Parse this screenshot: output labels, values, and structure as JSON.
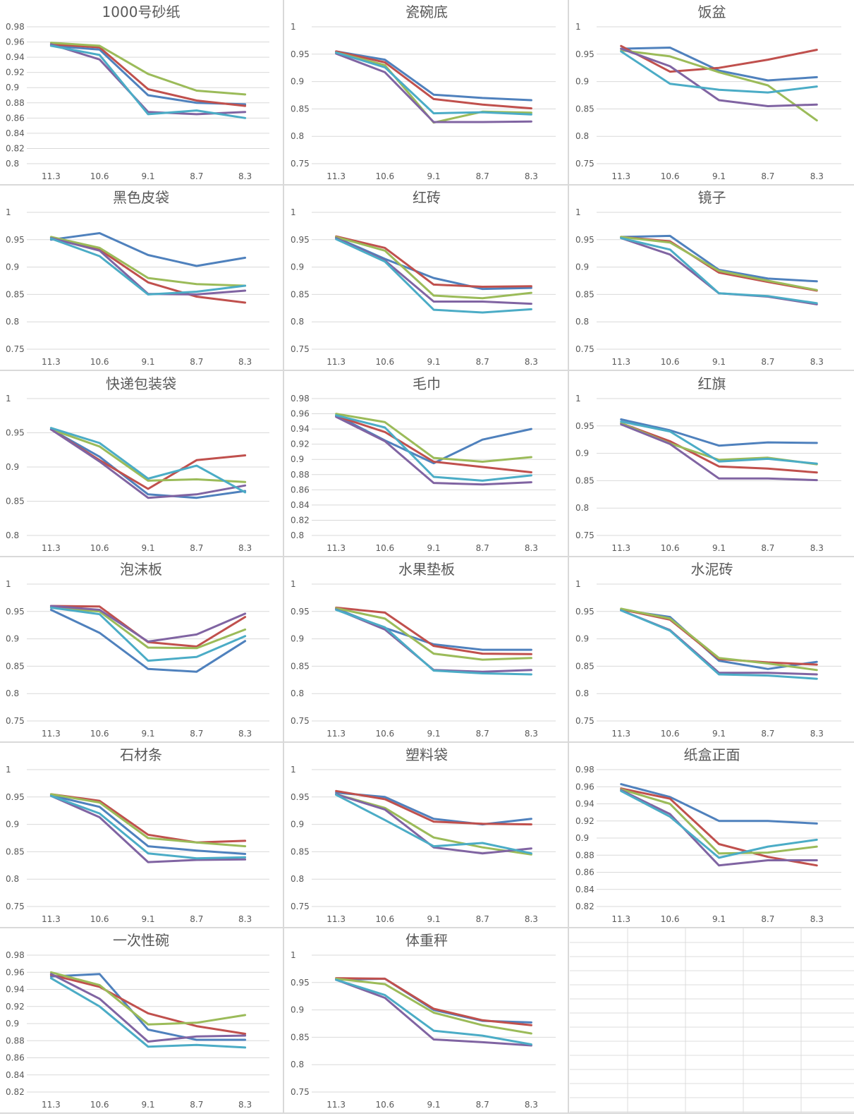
{
  "colors": [
    "#4f81bd",
    "#c0504d",
    "#9bbb59",
    "#8064a2",
    "#4bacc6"
  ],
  "chart_data": [
    {
      "type": "line",
      "title": "1000号砂纸",
      "categories": [
        "11.3",
        "10.6",
        "9.1",
        "8.7",
        "8.3"
      ],
      "yticks": [
        "0.8",
        "0.82",
        "0.84",
        "0.86",
        "0.88",
        "0.9",
        "0.92",
        "0.94",
        "0.96",
        "0.98"
      ],
      "ylim": [
        0.8,
        0.98
      ],
      "series": [
        {
          "values": [
            0.955,
            0.95,
            0.89,
            0.88,
            0.878
          ]
        },
        {
          "values": [
            0.957,
            0.953,
            0.898,
            0.883,
            0.876
          ]
        },
        {
          "values": [
            0.959,
            0.955,
            0.918,
            0.896,
            0.891
          ]
        },
        {
          "values": [
            0.957,
            0.937,
            0.868,
            0.865,
            0.868
          ]
        },
        {
          "values": [
            0.955,
            0.943,
            0.865,
            0.87,
            0.86
          ]
        }
      ]
    },
    {
      "type": "line",
      "title": "瓷碗底",
      "categories": [
        "11.3",
        "10.6",
        "9.1",
        "8.7",
        "8.3"
      ],
      "yticks": [
        "0.75",
        "0.8",
        "0.85",
        "0.9",
        "0.95",
        "1"
      ],
      "ylim": [
        0.75,
        1
      ],
      "series": [
        {
          "values": [
            0.955,
            0.94,
            0.876,
            0.87,
            0.866
          ]
        },
        {
          "values": [
            0.955,
            0.935,
            0.868,
            0.858,
            0.851
          ]
        },
        {
          "values": [
            0.953,
            0.93,
            0.825,
            0.845,
            0.843
          ]
        },
        {
          "values": [
            0.951,
            0.917,
            0.826,
            0.826,
            0.827
          ]
        },
        {
          "values": [
            0.953,
            0.926,
            0.842,
            0.844,
            0.84
          ]
        }
      ]
    },
    {
      "type": "line",
      "title": "饭盆",
      "categories": [
        "11.3",
        "10.6",
        "9.1",
        "8.7",
        "8.3"
      ],
      "yticks": [
        "0.75",
        "0.8",
        "0.85",
        "0.9",
        "0.95",
        "1"
      ],
      "ylim": [
        0.75,
        1
      ],
      "series": [
        {
          "values": [
            0.96,
            0.962,
            0.92,
            0.902,
            0.908
          ]
        },
        {
          "values": [
            0.965,
            0.918,
            0.925,
            0.94,
            0.958
          ]
        },
        {
          "values": [
            0.957,
            0.946,
            0.917,
            0.893,
            0.829
          ]
        },
        {
          "values": [
            0.96,
            0.928,
            0.866,
            0.855,
            0.858
          ]
        },
        {
          "values": [
            0.955,
            0.896,
            0.885,
            0.88,
            0.891
          ]
        }
      ]
    },
    {
      "type": "line",
      "title": "黑色皮袋",
      "categories": [
        "11.3",
        "10.6",
        "9.1",
        "8.7",
        "8.3"
      ],
      "yticks": [
        "0.75",
        "0.8",
        "0.85",
        "0.9",
        "0.95",
        "1"
      ],
      "ylim": [
        0.75,
        1
      ],
      "series": [
        {
          "values": [
            0.95,
            0.962,
            0.922,
            0.902,
            0.917
          ]
        },
        {
          "values": [
            0.954,
            0.932,
            0.872,
            0.846,
            0.835
          ]
        },
        {
          "values": [
            0.955,
            0.935,
            0.88,
            0.869,
            0.866
          ]
        },
        {
          "values": [
            0.953,
            0.93,
            0.851,
            0.85,
            0.857
          ]
        },
        {
          "values": [
            0.952,
            0.92,
            0.85,
            0.855,
            0.866
          ]
        }
      ]
    },
    {
      "type": "line",
      "title": "红砖",
      "categories": [
        "11.3",
        "10.6",
        "9.1",
        "8.7",
        "8.3"
      ],
      "yticks": [
        "0.75",
        "0.8",
        "0.85",
        "0.9",
        "0.95",
        "1"
      ],
      "ylim": [
        0.75,
        1
      ],
      "series": [
        {
          "values": [
            0.954,
            0.915,
            0.88,
            0.86,
            0.862
          ]
        },
        {
          "values": [
            0.956,
            0.935,
            0.868,
            0.864,
            0.865
          ]
        },
        {
          "values": [
            0.955,
            0.93,
            0.848,
            0.843,
            0.853
          ]
        },
        {
          "values": [
            0.953,
            0.912,
            0.837,
            0.837,
            0.833
          ]
        },
        {
          "values": [
            0.951,
            0.91,
            0.822,
            0.817,
            0.823
          ]
        }
      ]
    },
    {
      "type": "line",
      "title": "镜子",
      "categories": [
        "11.3",
        "10.6",
        "9.1",
        "8.7",
        "8.3"
      ],
      "yticks": [
        "0.75",
        "0.8",
        "0.85",
        "0.9",
        "0.95",
        "1"
      ],
      "ylim": [
        0.75,
        1
      ],
      "series": [
        {
          "values": [
            0.955,
            0.957,
            0.895,
            0.879,
            0.874
          ]
        },
        {
          "values": [
            0.955,
            0.947,
            0.89,
            0.873,
            0.857
          ]
        },
        {
          "values": [
            0.955,
            0.945,
            0.893,
            0.875,
            0.858
          ]
        },
        {
          "values": [
            0.953,
            0.923,
            0.852,
            0.846,
            0.832
          ]
        },
        {
          "values": [
            0.953,
            0.932,
            0.852,
            0.847,
            0.834
          ]
        }
      ]
    },
    {
      "type": "line",
      "title": "快递包装袋",
      "categories": [
        "11.3",
        "10.6",
        "9.1",
        "8.7",
        "8.3"
      ],
      "yticks": [
        "0.8",
        "0.85",
        "0.9",
        "0.95",
        "1"
      ],
      "ylim": [
        0.8,
        1
      ],
      "series": [
        {
          "values": [
            0.955,
            0.915,
            0.86,
            0.855,
            0.865
          ]
        },
        {
          "values": [
            0.955,
            0.91,
            0.868,
            0.91,
            0.917
          ]
        },
        {
          "values": [
            0.955,
            0.93,
            0.88,
            0.882,
            0.878
          ]
        },
        {
          "values": [
            0.955,
            0.908,
            0.855,
            0.86,
            0.873
          ]
        },
        {
          "values": [
            0.957,
            0.935,
            0.883,
            0.902,
            0.863
          ]
        }
      ]
    },
    {
      "type": "line",
      "title": "毛巾",
      "categories": [
        "11.3",
        "10.6",
        "9.1",
        "8.7",
        "8.3"
      ],
      "yticks": [
        "0.8",
        "0.82",
        "0.84",
        "0.86",
        "0.88",
        "0.9",
        "0.92",
        "0.94",
        "0.96",
        "0.98"
      ],
      "ylim": [
        0.8,
        0.98
      ],
      "series": [
        {
          "values": [
            0.958,
            0.925,
            0.895,
            0.926,
            0.94
          ]
        },
        {
          "values": [
            0.957,
            0.936,
            0.897,
            0.89,
            0.883
          ]
        },
        {
          "values": [
            0.96,
            0.949,
            0.902,
            0.897,
            0.903
          ]
        },
        {
          "values": [
            0.956,
            0.924,
            0.869,
            0.867,
            0.87
          ]
        },
        {
          "values": [
            0.958,
            0.942,
            0.877,
            0.872,
            0.879
          ]
        }
      ]
    },
    {
      "type": "line",
      "title": "红旗",
      "categories": [
        "11.3",
        "10.6",
        "9.1",
        "8.7",
        "8.3"
      ],
      "yticks": [
        "0.75",
        "0.8",
        "0.85",
        "0.9",
        "0.95",
        "1"
      ],
      "ylim": [
        0.75,
        1
      ],
      "series": [
        {
          "values": [
            0.962,
            0.942,
            0.914,
            0.92,
            0.919
          ]
        },
        {
          "values": [
            0.955,
            0.922,
            0.876,
            0.872,
            0.865
          ]
        },
        {
          "values": [
            0.955,
            0.918,
            0.888,
            0.892,
            0.88
          ]
        },
        {
          "values": [
            0.953,
            0.917,
            0.854,
            0.854,
            0.851
          ]
        },
        {
          "values": [
            0.958,
            0.94,
            0.885,
            0.89,
            0.881
          ]
        }
      ]
    },
    {
      "type": "line",
      "title": "泡沫板",
      "categories": [
        "11.3",
        "10.6",
        "9.1",
        "8.7",
        "8.3"
      ],
      "yticks": [
        "0.75",
        "0.8",
        "0.85",
        "0.9",
        "0.95",
        "1"
      ],
      "ylim": [
        0.75,
        1
      ],
      "series": [
        {
          "values": [
            0.953,
            0.911,
            0.845,
            0.84,
            0.896
          ]
        },
        {
          "values": [
            0.96,
            0.959,
            0.894,
            0.886,
            0.94
          ]
        },
        {
          "values": [
            0.957,
            0.95,
            0.884,
            0.883,
            0.917
          ]
        },
        {
          "values": [
            0.96,
            0.953,
            0.895,
            0.908,
            0.946
          ]
        },
        {
          "values": [
            0.957,
            0.945,
            0.86,
            0.867,
            0.905
          ]
        }
      ]
    },
    {
      "type": "line",
      "title": "水果垫板",
      "categories": [
        "11.3",
        "10.6",
        "9.1",
        "8.7",
        "8.3"
      ],
      "yticks": [
        "0.75",
        "0.8",
        "0.85",
        "0.9",
        "0.95",
        "1"
      ],
      "ylim": [
        0.75,
        1
      ],
      "series": [
        {
          "values": [
            0.955,
            0.92,
            0.89,
            0.88,
            0.88
          ]
        },
        {
          "values": [
            0.957,
            0.948,
            0.887,
            0.873,
            0.872
          ]
        },
        {
          "values": [
            0.956,
            0.937,
            0.873,
            0.862,
            0.865
          ]
        },
        {
          "values": [
            0.954,
            0.917,
            0.843,
            0.84,
            0.843
          ]
        },
        {
          "values": [
            0.953,
            0.921,
            0.842,
            0.837,
            0.835
          ]
        }
      ]
    },
    {
      "type": "line",
      "title": "水泥砖",
      "categories": [
        "11.3",
        "10.6",
        "9.1",
        "8.7",
        "8.3"
      ],
      "yticks": [
        "0.75",
        "0.8",
        "0.85",
        "0.9",
        "0.95",
        "1"
      ],
      "ylim": [
        0.75,
        1
      ],
      "series": [
        {
          "values": [
            0.953,
            0.94,
            0.86,
            0.845,
            0.858
          ]
        },
        {
          "values": [
            0.954,
            0.935,
            0.863,
            0.857,
            0.853
          ]
        },
        {
          "values": [
            0.955,
            0.937,
            0.865,
            0.855,
            0.843
          ]
        },
        {
          "values": [
            0.952,
            0.916,
            0.838,
            0.838,
            0.835
          ]
        },
        {
          "values": [
            0.952,
            0.915,
            0.835,
            0.833,
            0.827
          ]
        }
      ]
    },
    {
      "type": "line",
      "title": "石材条",
      "categories": [
        "11.3",
        "10.6",
        "9.1",
        "8.7",
        "8.3"
      ],
      "yticks": [
        "0.75",
        "0.8",
        "0.85",
        "0.9",
        "0.95",
        "1"
      ],
      "ylim": [
        0.75,
        1
      ],
      "series": [
        {
          "values": [
            0.953,
            0.932,
            0.86,
            0.852,
            0.846
          ]
        },
        {
          "values": [
            0.955,
            0.943,
            0.881,
            0.867,
            0.87
          ]
        },
        {
          "values": [
            0.955,
            0.94,
            0.875,
            0.867,
            0.86
          ]
        },
        {
          "values": [
            0.952,
            0.913,
            0.831,
            0.835,
            0.836
          ]
        },
        {
          "values": [
            0.952,
            0.92,
            0.847,
            0.838,
            0.84
          ]
        }
      ]
    },
    {
      "type": "line",
      "title": "塑料袋",
      "categories": [
        "11.3",
        "10.6",
        "9.1",
        "8.7",
        "8.3"
      ],
      "yticks": [
        "0.75",
        "0.8",
        "0.85",
        "0.9",
        "0.95",
        "1"
      ],
      "ylim": [
        0.75,
        1
      ],
      "series": [
        {
          "values": [
            0.958,
            0.95,
            0.91,
            0.9,
            0.91
          ]
        },
        {
          "values": [
            0.961,
            0.946,
            0.905,
            0.901,
            0.9
          ]
        },
        {
          "values": [
            0.955,
            0.93,
            0.876,
            0.858,
            0.845
          ]
        },
        {
          "values": [
            0.955,
            0.927,
            0.858,
            0.847,
            0.856
          ]
        },
        {
          "values": [
            0.954,
            0.908,
            0.86,
            0.866,
            0.847
          ]
        }
      ]
    },
    {
      "type": "line",
      "title": "纸盒正面",
      "categories": [
        "11.3",
        "10.6",
        "9.1",
        "8.7",
        "8.3"
      ],
      "yticks": [
        "0.82",
        "0.84",
        "0.86",
        "0.88",
        "0.9",
        "0.92",
        "0.94",
        "0.96",
        "0.98"
      ],
      "ylim": [
        0.82,
        0.98
      ],
      "series": [
        {
          "values": [
            0.963,
            0.948,
            0.92,
            0.92,
            0.917
          ]
        },
        {
          "values": [
            0.958,
            0.946,
            0.893,
            0.878,
            0.868
          ]
        },
        {
          "values": [
            0.957,
            0.94,
            0.882,
            0.883,
            0.89
          ]
        },
        {
          "values": [
            0.956,
            0.928,
            0.868,
            0.874,
            0.874
          ]
        },
        {
          "values": [
            0.955,
            0.925,
            0.877,
            0.89,
            0.898
          ]
        }
      ]
    },
    {
      "type": "line",
      "title": "一次性碗",
      "categories": [
        "11.3",
        "10.6",
        "9.1",
        "8.7",
        "8.3"
      ],
      "yticks": [
        "0.82",
        "0.84",
        "0.86",
        "0.88",
        "0.9",
        "0.92",
        "0.94",
        "0.96",
        "0.98"
      ],
      "ylim": [
        0.82,
        0.98
      ],
      "series": [
        {
          "values": [
            0.955,
            0.958,
            0.893,
            0.881,
            0.881
          ]
        },
        {
          "values": [
            0.957,
            0.943,
            0.912,
            0.897,
            0.888
          ]
        },
        {
          "values": [
            0.96,
            0.945,
            0.899,
            0.901,
            0.91
          ]
        },
        {
          "values": [
            0.958,
            0.929,
            0.879,
            0.885,
            0.886
          ]
        },
        {
          "values": [
            0.953,
            0.92,
            0.873,
            0.875,
            0.872
          ]
        }
      ]
    },
    {
      "type": "line",
      "title": "体重秤",
      "categories": [
        "11.3",
        "10.6",
        "9.1",
        "8.7",
        "8.3"
      ],
      "yticks": [
        "0.75",
        "0.8",
        "0.85",
        "0.9",
        "0.95",
        "1"
      ],
      "ylim": [
        0.75,
        1
      ],
      "series": [
        {
          "values": [
            0.955,
            0.957,
            0.9,
            0.88,
            0.877
          ]
        },
        {
          "values": [
            0.958,
            0.957,
            0.902,
            0.881,
            0.872
          ]
        },
        {
          "values": [
            0.957,
            0.947,
            0.895,
            0.872,
            0.857
          ]
        },
        {
          "values": [
            0.955,
            0.922,
            0.846,
            0.841,
            0.835
          ]
        },
        {
          "values": [
            0.955,
            0.927,
            0.862,
            0.853,
            0.837
          ]
        }
      ]
    }
  ]
}
